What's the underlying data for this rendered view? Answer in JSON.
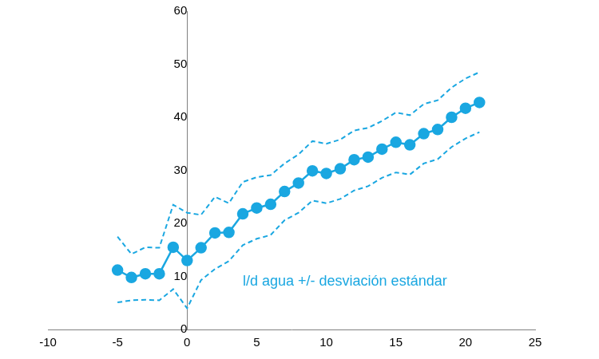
{
  "chart_data": {
    "type": "line",
    "annotation": "l/d agua +/- desviación estándar",
    "x": [
      -5,
      -4,
      -3,
      -2,
      -1,
      0,
      1,
      2,
      3,
      4,
      5,
      6,
      7,
      8,
      9,
      10,
      11,
      12,
      13,
      14,
      15,
      16,
      17,
      18,
      19,
      20,
      21
    ],
    "series": [
      {
        "color": "#1aa7e1",
        "marker": "circle",
        "line_style": "solid",
        "values": [
          11.2,
          9.8,
          10.5,
          10.5,
          15.5,
          13,
          15.4,
          18.2,
          18.3,
          21.8,
          22.9,
          23.6,
          26,
          27.6,
          29.9,
          29.4,
          30.3,
          32,
          32.5,
          34,
          35.3,
          34.8,
          36.9,
          37.7,
          40,
          41.7,
          42.8
        ]
      },
      {
        "color": "#1aa7e1",
        "marker": "none",
        "line_style": "dashed",
        "values": [
          17.5,
          14.2,
          15.5,
          15.4,
          23.5,
          22,
          21.6,
          25,
          23.8,
          27.8,
          28.7,
          29.1,
          31.3,
          33,
          35.5,
          35,
          35.8,
          37.5,
          38,
          39.3,
          40.9,
          40.4,
          42.5,
          43.2,
          45.6,
          47.3,
          48.5
        ]
      },
      {
        "color": "#1aa7e1",
        "marker": "none",
        "line_style": "dashed",
        "values": [
          5.1,
          5.5,
          5.6,
          5.5,
          7.6,
          4,
          9.3,
          11.4,
          12.9,
          15.9,
          17.1,
          17.8,
          20.6,
          22,
          24.3,
          23.8,
          24.6,
          26.2,
          27,
          28.6,
          29.6,
          29.2,
          31.3,
          32.1,
          34.4,
          36,
          37.2
        ]
      }
    ],
    "xlim": [
      -10,
      25
    ],
    "xticks": [
      -10,
      -5,
      0,
      5,
      10,
      15,
      20,
      25
    ],
    "ylim": [
      0,
      60
    ],
    "yticks": [
      0,
      10,
      20,
      30,
      40,
      50,
      60
    ],
    "grid": false
  }
}
